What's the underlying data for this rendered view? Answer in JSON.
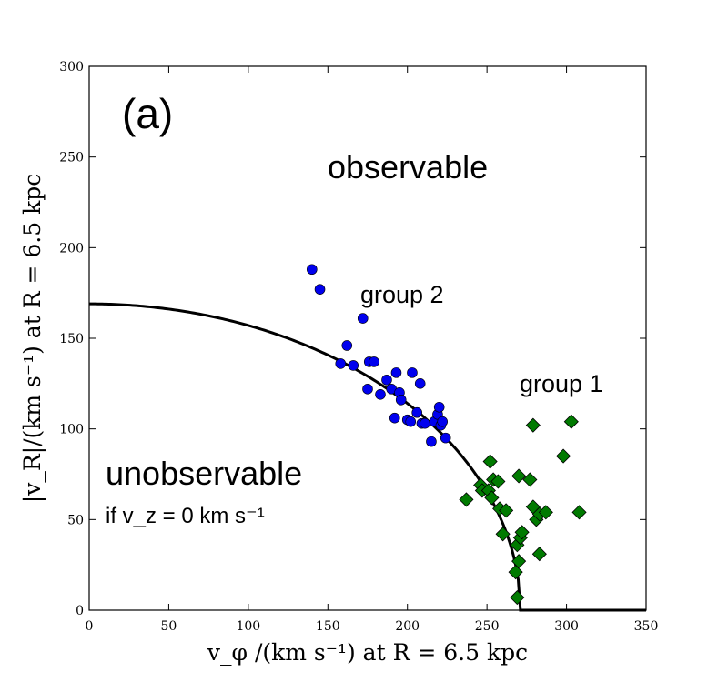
{
  "chart_data": {
    "type": "scatter",
    "panel_label": "(a)",
    "xlabel": "v_φ /(km s⁻¹) at R = 6.5 kpc",
    "ylabel": "|v_R|/(km s⁻¹) at R = 6.5 kpc",
    "xlim": [
      0,
      350
    ],
    "ylim": [
      0,
      300
    ],
    "xticks": [
      0,
      50,
      100,
      150,
      200,
      250,
      300,
      350
    ],
    "yticks": [
      0,
      50,
      100,
      150,
      200,
      250,
      300
    ],
    "grid": false,
    "region_labels": {
      "observable": "observable",
      "unobservable": "unobservable",
      "condition": "if v_z = 0 km s⁻¹"
    },
    "boundary_curve": {
      "description": "observability boundary",
      "y_at_x0": 169,
      "x_at_y0": 271,
      "x_end": 350,
      "color": "#000000"
    },
    "series": [
      {
        "name": "group 1",
        "color": "#007a00",
        "marker": "diamond",
        "points": [
          [
            237,
            61
          ],
          [
            246,
            69
          ],
          [
            247,
            66
          ],
          [
            251,
            66
          ],
          [
            252,
            82
          ],
          [
            253,
            62
          ],
          [
            254,
            72
          ],
          [
            257,
            71
          ],
          [
            258,
            56
          ],
          [
            260,
            42
          ],
          [
            262,
            55
          ],
          [
            268,
            21
          ],
          [
            269,
            7
          ],
          [
            269,
            36
          ],
          [
            270,
            27
          ],
          [
            270,
            74
          ],
          [
            271,
            40
          ],
          [
            272,
            43
          ],
          [
            277,
            72
          ],
          [
            279,
            57
          ],
          [
            279,
            102
          ],
          [
            281,
            50
          ],
          [
            283,
            31
          ],
          [
            283,
            53
          ],
          [
            287,
            54
          ],
          [
            298,
            85
          ],
          [
            303,
            104
          ],
          [
            308,
            54
          ]
        ]
      },
      {
        "name": "group 2",
        "color": "#0000ee",
        "marker": "circle",
        "points": [
          [
            140,
            188
          ],
          [
            145,
            177
          ],
          [
            158,
            136
          ],
          [
            162,
            146
          ],
          [
            166,
            135
          ],
          [
            172,
            161
          ],
          [
            175,
            122
          ],
          [
            176,
            137
          ],
          [
            179,
            137
          ],
          [
            183,
            119
          ],
          [
            187,
            127
          ],
          [
            190,
            122
          ],
          [
            192,
            106
          ],
          [
            193,
            131
          ],
          [
            195,
            120
          ],
          [
            196,
            116
          ],
          [
            200,
            105
          ],
          [
            202,
            104
          ],
          [
            203,
            131
          ],
          [
            206,
            109
          ],
          [
            208,
            125
          ],
          [
            209,
            103
          ],
          [
            211,
            103
          ],
          [
            215,
            93
          ],
          [
            217,
            104
          ],
          [
            219,
            108
          ],
          [
            220,
            112
          ],
          [
            221,
            102
          ],
          [
            222,
            104
          ],
          [
            224,
            95
          ]
        ]
      }
    ]
  }
}
